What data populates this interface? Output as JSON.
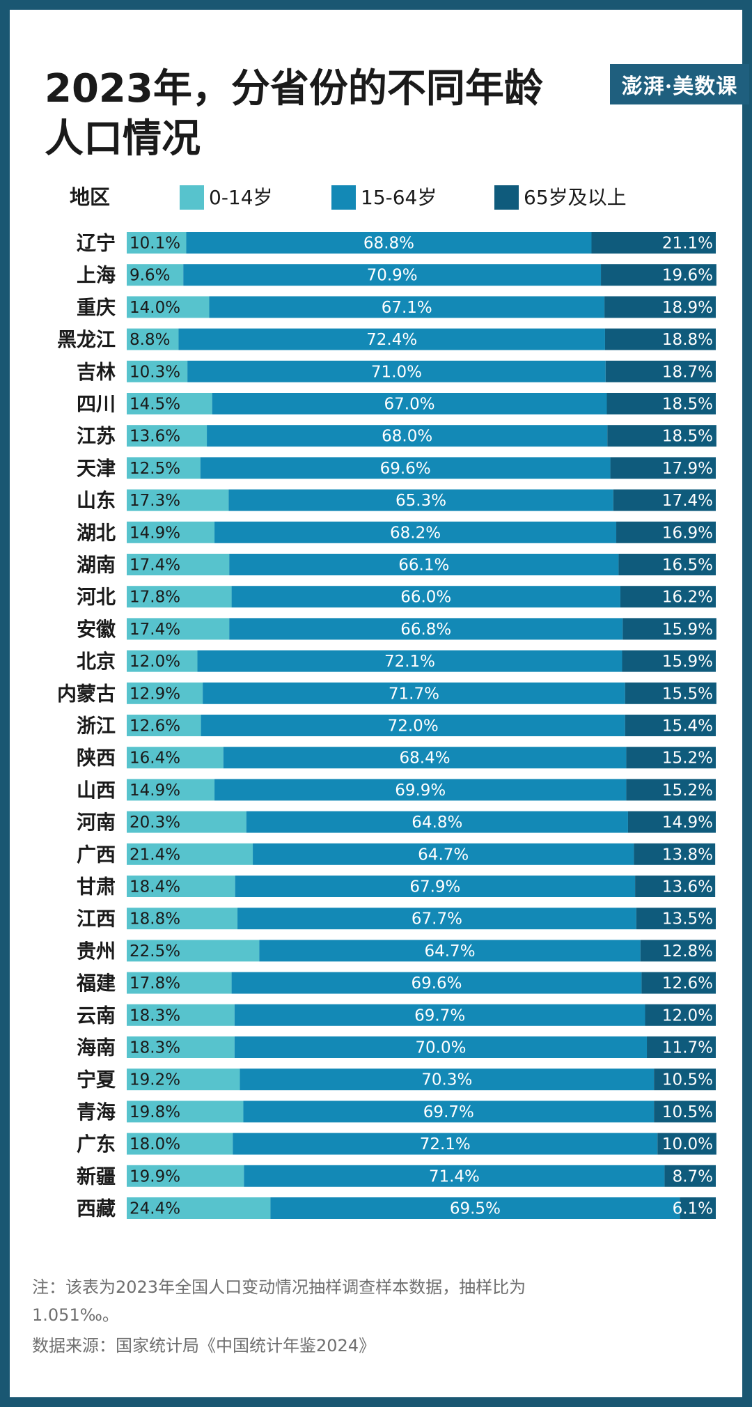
{
  "title_line1": "2023年，分省份的不同年龄",
  "title_line2": "人口情况",
  "logo_text": "澎湃·美数课",
  "note": "注：该表为2023年全国人口变动情况抽样调查样本数据，抽样比为1.051‰。",
  "source": "数据来源：国家统计局《中国统计年鉴2024》",
  "colors": {
    "young": "#57c3cd",
    "working": "#1389b6",
    "elderly": "#0f5b7c",
    "background_border": "#1a5772"
  },
  "chart_data": {
    "type": "bar",
    "orientation": "horizontal",
    "stacked": "100%",
    "category_header": "地区",
    "legend_position": "top",
    "categories": [
      "辽宁",
      "上海",
      "重庆",
      "黑龙江",
      "吉林",
      "四川",
      "江苏",
      "天津",
      "山东",
      "湖北",
      "湖南",
      "河北",
      "安徽",
      "北京",
      "内蒙古",
      "浙江",
      "陕西",
      "山西",
      "河南",
      "广西",
      "甘肃",
      "江西",
      "贵州",
      "福建",
      "云南",
      "海南",
      "宁夏",
      "青海",
      "广东",
      "新疆",
      "西藏"
    ],
    "series": [
      {
        "name": "0-14岁",
        "values": [
          10.1,
          9.6,
          14.0,
          8.8,
          10.3,
          14.5,
          13.6,
          12.5,
          17.3,
          14.9,
          17.4,
          17.8,
          17.4,
          12.0,
          12.9,
          12.6,
          16.4,
          14.9,
          20.3,
          21.4,
          18.4,
          18.8,
          22.5,
          17.8,
          18.3,
          18.3,
          19.2,
          19.8,
          18.0,
          19.9,
          24.4
        ]
      },
      {
        "name": "15-64岁",
        "values": [
          68.8,
          70.9,
          67.1,
          72.4,
          71.0,
          67.0,
          68.0,
          69.6,
          65.3,
          68.2,
          66.1,
          66.0,
          66.8,
          72.1,
          71.7,
          72.0,
          68.4,
          69.9,
          64.8,
          64.7,
          67.9,
          67.7,
          64.7,
          69.6,
          69.7,
          70.0,
          70.3,
          69.7,
          72.1,
          71.4,
          69.5
        ]
      },
      {
        "name": "65岁及以上",
        "values": [
          21.1,
          19.6,
          18.9,
          18.8,
          18.7,
          18.5,
          18.5,
          17.9,
          17.4,
          16.9,
          16.5,
          16.2,
          15.9,
          15.9,
          15.5,
          15.4,
          15.2,
          15.2,
          14.9,
          13.8,
          13.6,
          13.5,
          12.8,
          12.6,
          12.0,
          11.7,
          10.5,
          10.5,
          10.0,
          8.7,
          6.1
        ]
      }
    ],
    "value_suffix": "%",
    "xlim": [
      0,
      100
    ]
  }
}
